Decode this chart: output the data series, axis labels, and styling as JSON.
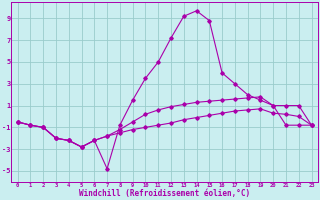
{
  "background_color": "#caeef0",
  "grid_color": "#99cccc",
  "line_color": "#aa00aa",
  "x_values": [
    0,
    1,
    2,
    3,
    4,
    5,
    6,
    7,
    8,
    9,
    10,
    11,
    12,
    13,
    14,
    15,
    16,
    17,
    18,
    19,
    20,
    21,
    22,
    23
  ],
  "line1": [
    -0.5,
    -0.8,
    -1.0,
    -2.0,
    -2.2,
    -2.8,
    -2.2,
    -4.8,
    -0.8,
    1.5,
    3.5,
    5.0,
    7.2,
    9.2,
    9.7,
    8.8,
    4.0,
    3.0,
    2.0,
    1.5,
    1.0,
    -0.8,
    -0.8,
    -0.8
  ],
  "line2": [
    -0.5,
    -0.8,
    -1.0,
    -2.0,
    -2.2,
    -2.8,
    -2.2,
    -1.8,
    -1.2,
    -0.5,
    0.2,
    0.6,
    0.9,
    1.1,
    1.3,
    1.4,
    1.5,
    1.6,
    1.7,
    1.8,
    1.0,
    1.0,
    1.0,
    -0.8
  ],
  "line3": [
    -0.5,
    -0.8,
    -1.0,
    -2.0,
    -2.2,
    -2.8,
    -2.2,
    -1.8,
    -1.5,
    -1.2,
    -1.0,
    -0.8,
    -0.6,
    -0.3,
    -0.1,
    0.1,
    0.3,
    0.5,
    0.6,
    0.7,
    0.3,
    0.2,
    0.0,
    -0.8
  ],
  "xlabel": "Windchill (Refroidissement éolien,°C)",
  "ylim": [
    -6,
    10.5
  ],
  "xlim": [
    -0.5,
    23.5
  ],
  "yticks": [
    -5,
    -3,
    -1,
    1,
    3,
    5,
    7,
    9
  ],
  "xtick_labels": [
    "0",
    "1",
    "2",
    "3",
    "4",
    "5",
    "6",
    "7",
    "8",
    "9",
    "10",
    "11",
    "12",
    "13",
    "14",
    "15",
    "16",
    "17",
    "18",
    "19",
    "20",
    "21",
    "22",
    "23"
  ]
}
